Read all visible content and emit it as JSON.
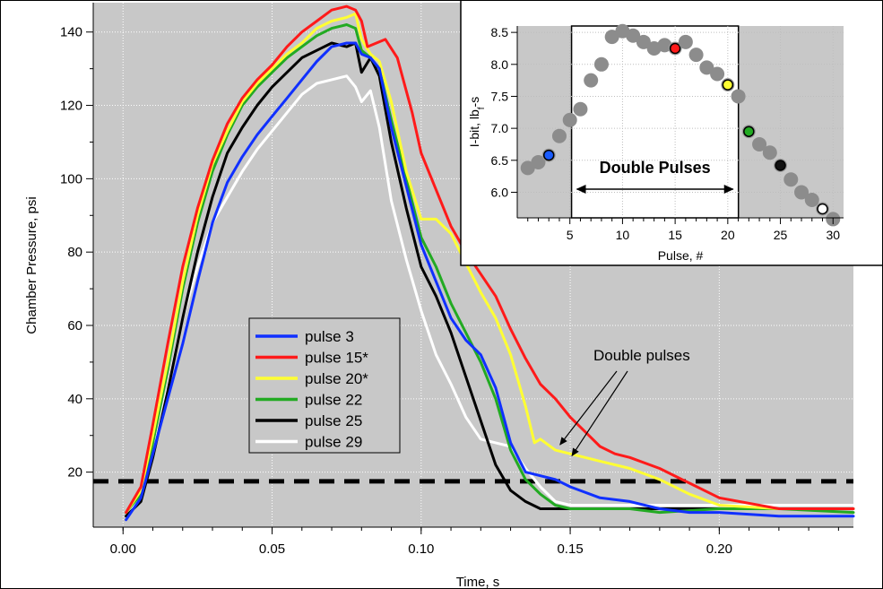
{
  "chart_data": [
    {
      "type": "line",
      "title": "",
      "xlabel": "Time, s",
      "ylabel": "Chamber Pressure, psi",
      "xlim": [
        -0.01,
        0.245
      ],
      "ylim": [
        5,
        148
      ],
      "xticks": [
        0.0,
        0.05,
        0.1,
        0.15,
        0.2
      ],
      "xtick_labels": [
        "0.00",
        "0.05",
        "0.10",
        "0.15",
        "0.20"
      ],
      "yticks": [
        20,
        40,
        60,
        80,
        100,
        120,
        140
      ],
      "grid": true,
      "legend_position": "center-left",
      "threshold_line": {
        "y": 17.5,
        "style": "dashed",
        "color": "#000000"
      },
      "annotation": {
        "text": "Double pulses",
        "arrow_targets": [
          [
            0.15,
            24
          ],
          [
            0.146,
            27
          ]
        ]
      },
      "series": [
        {
          "name": "pulse 3",
          "color": "#1030ff",
          "x": [
            0.001,
            0.006,
            0.01,
            0.015,
            0.02,
            0.025,
            0.03,
            0.035,
            0.04,
            0.045,
            0.05,
            0.055,
            0.06,
            0.065,
            0.07,
            0.075,
            0.078,
            0.08,
            0.083,
            0.086,
            0.09,
            0.095,
            0.1,
            0.105,
            0.11,
            0.115,
            0.12,
            0.125,
            0.13,
            0.135,
            0.14,
            0.145,
            0.15,
            0.16,
            0.17,
            0.18,
            0.19,
            0.2,
            0.22,
            0.245
          ],
          "y": [
            7,
            13,
            25,
            40,
            55,
            72,
            88,
            99,
            106,
            112,
            117,
            122,
            127,
            132,
            136,
            137,
            137,
            134,
            133,
            130,
            114,
            98,
            82,
            72,
            62,
            56,
            52,
            43,
            28,
            20,
            19,
            18,
            16,
            13,
            12,
            10,
            9,
            9,
            8,
            8
          ]
        },
        {
          "name": "pulse 15*",
          "color": "#ff1a1a",
          "x": [
            0.001,
            0.006,
            0.01,
            0.015,
            0.02,
            0.025,
            0.03,
            0.035,
            0.04,
            0.045,
            0.05,
            0.055,
            0.06,
            0.065,
            0.07,
            0.075,
            0.078,
            0.08,
            0.082,
            0.085,
            0.088,
            0.092,
            0.097,
            0.1,
            0.105,
            0.11,
            0.115,
            0.12,
            0.125,
            0.13,
            0.135,
            0.14,
            0.145,
            0.15,
            0.155,
            0.16,
            0.165,
            0.17,
            0.18,
            0.19,
            0.2,
            0.22,
            0.245
          ],
          "y": [
            9,
            16,
            33,
            55,
            76,
            92,
            105,
            115,
            122,
            127,
            131,
            136,
            140,
            143,
            146,
            147,
            146,
            143,
            136,
            137,
            138,
            133,
            118,
            107,
            97,
            87,
            80,
            74,
            68,
            59,
            51,
            44,
            40,
            35,
            31,
            27,
            25,
            24,
            21,
            17,
            13,
            10,
            10
          ]
        },
        {
          "name": "pulse 20*",
          "color": "#ffff33",
          "x": [
            0.001,
            0.006,
            0.01,
            0.015,
            0.02,
            0.025,
            0.03,
            0.035,
            0.04,
            0.045,
            0.05,
            0.055,
            0.06,
            0.065,
            0.07,
            0.075,
            0.078,
            0.08,
            0.083,
            0.086,
            0.09,
            0.095,
            0.1,
            0.105,
            0.11,
            0.115,
            0.12,
            0.125,
            0.13,
            0.135,
            0.138,
            0.14,
            0.145,
            0.15,
            0.16,
            0.17,
            0.18,
            0.19,
            0.2,
            0.22,
            0.245
          ],
          "y": [
            9,
            15,
            30,
            50,
            72,
            90,
            104,
            113,
            121,
            126,
            130,
            134,
            137,
            141,
            143,
            144,
            145,
            138,
            134,
            132,
            121,
            102,
            89,
            89,
            85,
            77,
            69,
            62,
            52,
            38,
            28,
            29,
            26,
            25,
            23,
            21,
            18,
            14,
            11,
            10,
            10
          ]
        },
        {
          "name": "pulse 22",
          "color": "#22aa22",
          "x": [
            0.001,
            0.006,
            0.01,
            0.015,
            0.02,
            0.025,
            0.03,
            0.035,
            0.04,
            0.045,
            0.05,
            0.055,
            0.06,
            0.065,
            0.07,
            0.075,
            0.078,
            0.08,
            0.083,
            0.086,
            0.09,
            0.095,
            0.1,
            0.105,
            0.11,
            0.115,
            0.12,
            0.125,
            0.13,
            0.135,
            0.14,
            0.145,
            0.15,
            0.16,
            0.17,
            0.18,
            0.2,
            0.22,
            0.245
          ],
          "y": [
            9,
            14,
            28,
            48,
            70,
            88,
            102,
            112,
            120,
            125,
            129,
            133,
            136,
            139,
            141,
            142,
            141,
            135,
            133,
            130,
            116,
            100,
            84,
            76,
            66,
            58,
            50,
            40,
            26,
            18,
            14,
            11,
            10,
            10,
            10,
            9,
            10,
            10,
            9
          ]
        },
        {
          "name": "pulse 25",
          "color": "#000000",
          "x": [
            0.001,
            0.006,
            0.01,
            0.015,
            0.02,
            0.025,
            0.03,
            0.035,
            0.04,
            0.045,
            0.05,
            0.055,
            0.06,
            0.065,
            0.07,
            0.075,
            0.078,
            0.08,
            0.083,
            0.086,
            0.09,
            0.095,
            0.1,
            0.105,
            0.11,
            0.115,
            0.12,
            0.125,
            0.13,
            0.135,
            0.14,
            0.145,
            0.15,
            0.16,
            0.17,
            0.18,
            0.2,
            0.22,
            0.245
          ],
          "y": [
            8,
            12,
            24,
            42,
            62,
            80,
            95,
            107,
            114,
            120,
            125,
            129,
            133,
            135,
            137,
            136,
            137,
            129,
            133,
            128,
            110,
            92,
            76,
            68,
            58,
            46,
            34,
            22,
            15,
            12,
            10,
            10,
            10,
            10,
            10,
            10,
            10,
            10,
            10
          ]
        },
        {
          "name": "pulse 29",
          "color": "#ffffff",
          "x": [
            0.001,
            0.006,
            0.01,
            0.015,
            0.02,
            0.025,
            0.03,
            0.035,
            0.04,
            0.045,
            0.05,
            0.055,
            0.06,
            0.065,
            0.07,
            0.075,
            0.078,
            0.08,
            0.083,
            0.086,
            0.09,
            0.095,
            0.1,
            0.105,
            0.11,
            0.115,
            0.12,
            0.125,
            0.13,
            0.135,
            0.14,
            0.145,
            0.15,
            0.16,
            0.17,
            0.18,
            0.2,
            0.22,
            0.245
          ],
          "y": [
            8,
            13,
            25,
            43,
            62,
            76,
            88,
            95,
            102,
            108,
            113,
            118,
            123,
            126,
            127,
            128,
            125,
            121,
            124,
            114,
            94,
            78,
            64,
            52,
            44,
            35,
            29,
            28,
            27,
            21,
            16,
            12,
            11,
            11,
            11,
            11,
            11,
            11,
            11
          ]
        }
      ]
    },
    {
      "type": "scatter",
      "title": "",
      "xlabel": "Pulse, #",
      "ylabel": "I-bit, lbf-s",
      "ylabel_main": "I-bit, lb",
      "ylabel_sub": "f",
      "ylabel_end": "-s",
      "xlim": [
        0,
        31
      ],
      "ylim": [
        5.6,
        8.6
      ],
      "xticks": [
        5,
        10,
        15,
        20,
        25,
        30
      ],
      "yticks": [
        6.0,
        6.5,
        7.0,
        7.5,
        8.0,
        8.5
      ],
      "ytick_labels": [
        "6.0",
        "6.5",
        "7.0",
        "7.5",
        "8.0",
        "8.5"
      ],
      "grid": true,
      "annotation": {
        "text": "Double Pulses",
        "x_range": [
          5.5,
          20.5
        ]
      },
      "points": {
        "x": [
          1,
          2,
          3,
          4,
          5,
          6,
          7,
          8,
          9,
          10,
          11,
          12,
          13,
          14,
          15,
          16,
          17,
          18,
          19,
          20,
          21,
          22,
          23,
          24,
          25,
          26,
          27,
          28,
          29,
          30
        ],
        "y": [
          6.38,
          6.47,
          6.58,
          6.88,
          7.13,
          7.3,
          7.75,
          8.0,
          8.43,
          8.52,
          8.45,
          8.35,
          8.25,
          8.3,
          8.25,
          8.35,
          8.15,
          7.95,
          7.85,
          7.68,
          7.5,
          6.95,
          6.75,
          6.62,
          6.42,
          6.2,
          6.0,
          5.88,
          5.74,
          5.58
        ],
        "highlight": [
          {
            "x": 3,
            "color": "#1a5cff"
          },
          {
            "x": 15,
            "color": "#ff1a1a"
          },
          {
            "x": 20,
            "color": "#ffff33"
          },
          {
            "x": 22,
            "color": "#22aa22"
          },
          {
            "x": 25,
            "color": "#111111"
          },
          {
            "x": 29,
            "color": "#ffffff"
          }
        ],
        "color": "#8c8c8c"
      }
    }
  ]
}
